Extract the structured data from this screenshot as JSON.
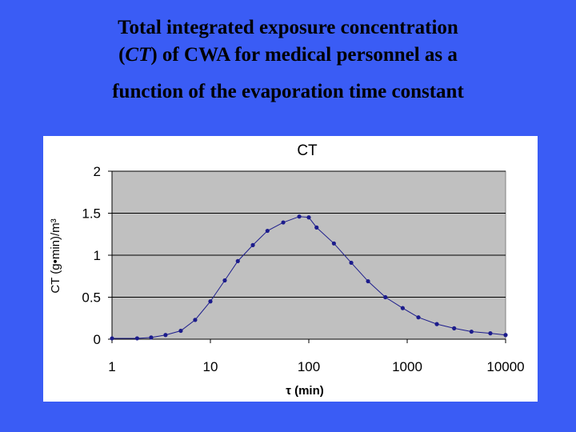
{
  "slide": {
    "title_line1": "Total integrated exposure concentration",
    "title_line2_italic": "CT",
    "title_line2_rest": ") of CWA for medical personnel as a",
    "title_line2_open": "(",
    "title_line3": "function of the evaporation time constant"
  },
  "chart_data": {
    "type": "scatter",
    "title": "CT",
    "xlabel": "τ (min)",
    "ylabel": "CT (g•min)/m³",
    "xscale": "log",
    "xlim": [
      1,
      10000
    ],
    "ylim": [
      0,
      2
    ],
    "xticks": [
      "1",
      "10",
      "100",
      "1000",
      "10000"
    ],
    "yticks": [
      "0",
      "0.5",
      "1",
      "1.5",
      "2"
    ],
    "grid": "horizontal",
    "plot_background": "#c0c0c0",
    "marker_color": "#1c1c8c",
    "series": [
      {
        "x": [
          1,
          1.8,
          2.5,
          3.5,
          5,
          7,
          10,
          14,
          19,
          27,
          38,
          55,
          80,
          100,
          120,
          180,
          270,
          400,
          600,
          900,
          1300,
          2000,
          3000,
          4500,
          7000,
          10000
        ],
        "y": [
          0.01,
          0.01,
          0.02,
          0.05,
          0.1,
          0.23,
          0.45,
          0.7,
          0.93,
          1.12,
          1.29,
          1.39,
          1.46,
          1.45,
          1.33,
          1.14,
          0.91,
          0.69,
          0.5,
          0.37,
          0.26,
          0.18,
          0.13,
          0.09,
          0.07,
          0.05
        ]
      }
    ]
  }
}
